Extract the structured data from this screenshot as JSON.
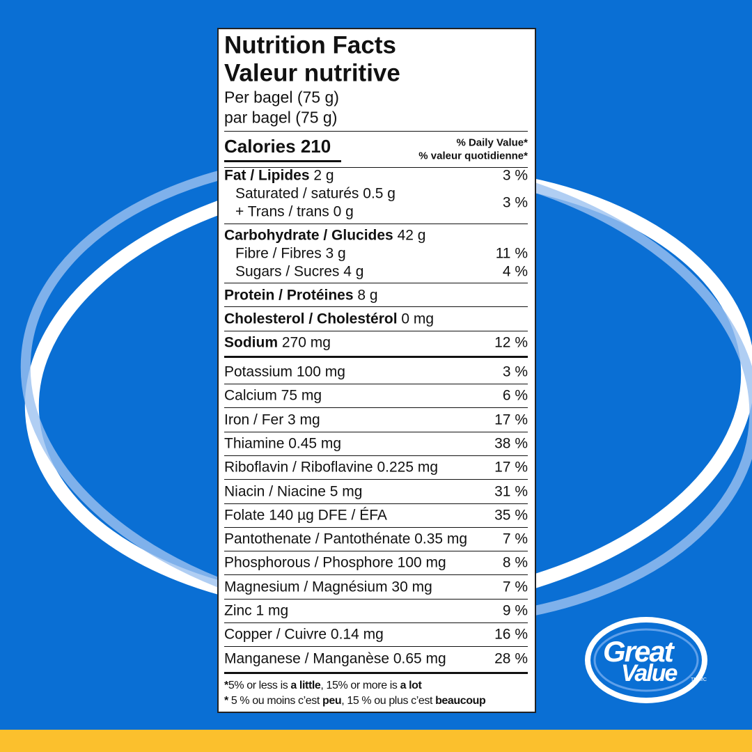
{
  "label": {
    "title": [
      "Nutrition Facts",
      "Valeur nutritive"
    ],
    "serving": [
      "Per bagel (75 g)",
      "par bagel (75 g)"
    ],
    "calories": "Calories 210",
    "daily_value_header": [
      "% Daily Value*",
      "% valeur quotidienne*"
    ],
    "nutrients": [
      {
        "name": "Fat / Lipides",
        "amount": "2 g",
        "dv": "3 %"
      },
      {
        "lines": [
          "Saturated / saturés 0.5 g",
          "+ Trans / trans 0 g"
        ],
        "dv": "3 %"
      },
      {
        "name": "Carbohydrate / Glucides",
        "amount": "42 g"
      },
      {
        "text": "Fibre / Fibres 3 g",
        "dv": "11 %"
      },
      {
        "text": "Sugars / Sucres 4 g",
        "dv": "4 %"
      },
      {
        "name": "Protein / Protéines",
        "amount": "8 g"
      },
      {
        "name": "Cholesterol / Cholestérol",
        "amount": "0 mg"
      },
      {
        "name": "Sodium",
        "amount": "270 mg",
        "dv": "12 %"
      }
    ],
    "minerals": [
      {
        "text": "Potassium 100 mg",
        "dv": "3 %"
      },
      {
        "text": "Calcium 75 mg",
        "dv": "6 %"
      },
      {
        "text": "Iron / Fer 3 mg",
        "dv": "17 %"
      },
      {
        "text": "Thiamine 0.45 mg",
        "dv": "38 %"
      },
      {
        "text": "Riboflavin / Riboflavine 0.225 mg",
        "dv": "17 %"
      },
      {
        "text": "Niacin / Niacine 5 mg",
        "dv": "31 %"
      },
      {
        "text": "Folate 140 µg DFE / ÉFA",
        "dv": "35 %"
      },
      {
        "text": "Pantothenate / Pantothénate 0.35 mg",
        "dv": "7 %"
      },
      {
        "text": "Phosphorous / Phosphore 100 mg",
        "dv": "8 %"
      },
      {
        "text": "Magnesium / Magnésium 30 mg",
        "dv": "7 %"
      },
      {
        "text": "Zinc 1 mg",
        "dv": "9 %"
      },
      {
        "text": "Copper / Cuivre 0.14 mg",
        "dv": "16 %"
      },
      {
        "text": "Manganese / Manganèse 0.65 mg",
        "dv": "28 %"
      }
    ],
    "footnote": [
      [
        {
          "text": "*",
          "bold": true
        },
        {
          "text": "5% or less is ",
          "bold": false
        },
        {
          "text": "a little",
          "bold": true
        },
        {
          "text": ", 15% or more is ",
          "bold": false
        },
        {
          "text": "a lot",
          "bold": true
        }
      ],
      [
        {
          "text": "*",
          "bold": true
        },
        {
          "text": " 5 % ou moins c’est ",
          "bold": false
        },
        {
          "text": "peu",
          "bold": true
        },
        {
          "text": ", 15 % ou plus c’est ",
          "bold": false
        },
        {
          "text": "beaucoup",
          "bold": true
        }
      ]
    ]
  },
  "logo": {
    "line1": "Great",
    "line2": "Value",
    "mark": "TM MC"
  }
}
